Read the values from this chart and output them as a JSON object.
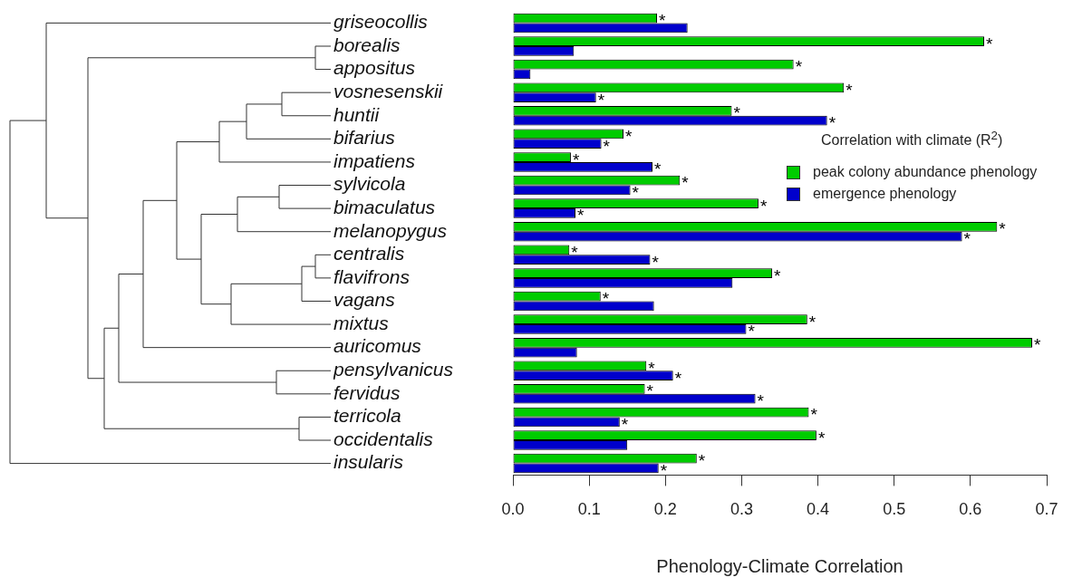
{
  "chart_data": {
    "type": "bar",
    "orientation": "horizontal",
    "xlabel": "Phenology-Climate Correlation",
    "legend_title": "Correlation with climate (R$^{2}$)",
    "legend": "right",
    "grid": false,
    "categories": [
      "griseocollis",
      "borealis",
      "appositus",
      "vosnesenskii",
      "huntii",
      "bifarius",
      "impatiens",
      "sylvicola",
      "bimaculatus",
      "melanopygus",
      "centralis",
      "flavifrons",
      "vagans",
      "mixtus",
      "auricomus",
      "pensylvanicus",
      "fervidus",
      "terricola",
      "occidentalis",
      "insularis"
    ],
    "xlim": [
      0,
      0.7
    ],
    "xticks": [
      {
        "value": 0,
        "label": "0.0"
      },
      0.1,
      0.2,
      0.3,
      0.4,
      0.5,
      0.6,
      0.7
    ],
    "series": [
      {
        "name": "peak colony abundance phenology",
        "color": "#00cc00",
        "values": [
          0.189,
          0.618,
          0.368,
          0.434,
          0.287,
          0.145,
          0.076,
          0.219,
          0.322,
          0.635,
          0.074,
          0.34,
          0.115,
          0.386,
          0.681,
          0.175,
          0.173,
          0.388,
          0.398,
          0.241
        ],
        "value_labels": [
          "*",
          "*",
          "*",
          "*",
          "*",
          "*",
          "*",
          "*",
          "*",
          "*",
          "*",
          "*",
          "*",
          "*",
          "*",
          "*",
          "*",
          "*",
          "*",
          "*"
        ]
      },
      {
        "name": "emergence phenology",
        "color": "#0000cc",
        "values": [
          0.229,
          0.08,
          0.023,
          0.109,
          0.412,
          0.116,
          0.183,
          0.154,
          0.082,
          0.589,
          0.18,
          0.288,
          0.185,
          0.306,
          0.084,
          0.21,
          0.318,
          0.14,
          0.15,
          0.191
        ],
        "value_labels": [
          null,
          null,
          null,
          "*",
          "*",
          "*",
          "*",
          "*",
          "*",
          "*",
          "*",
          null,
          null,
          "*",
          null,
          "*",
          "*",
          "*",
          null,
          "*"
        ]
      }
    ]
  }
}
